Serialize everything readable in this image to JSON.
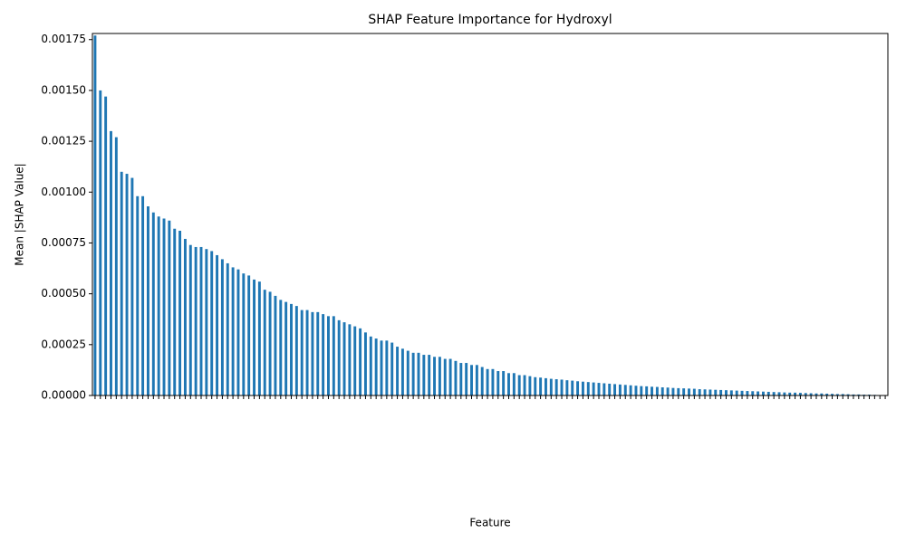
{
  "chart_data": {
    "type": "bar",
    "title": "SHAP Feature Importance for Hydroxyl",
    "xlabel": "Feature",
    "ylabel": "Mean |SHAP Value|",
    "color": "#1f77b4",
    "ylim": [
      0,
      0.00178
    ],
    "yticks": [
      {
        "value": 0,
        "label": "0.00000"
      },
      {
        "value": 0.00025,
        "label": "0.00025"
      },
      {
        "value": 0.0005,
        "label": "0.00050"
      },
      {
        "value": 0.00075,
        "label": "0.00075"
      },
      {
        "value": 0.001,
        "label": "0.00100"
      },
      {
        "value": 0.00125,
        "label": "0.00125"
      },
      {
        "value": 0.0015,
        "label": "0.00150"
      },
      {
        "value": 0.00175,
        "label": "0.00175"
      }
    ],
    "categories": [
      null,
      null,
      null,
      null,
      null,
      null,
      null,
      null,
      null,
      null,
      null,
      null,
      null,
      null,
      null,
      null,
      null,
      null,
      null,
      null,
      null,
      null,
      null,
      null,
      null,
      null,
      null,
      null,
      null,
      null,
      null,
      null,
      null,
      null,
      null,
      null,
      null,
      null,
      null,
      null,
      null,
      null,
      null,
      null,
      null,
      null,
      null,
      null,
      null,
      null,
      null,
      null,
      null,
      null,
      null,
      null,
      null,
      null,
      null,
      null,
      null,
      null,
      null,
      null,
      null,
      null,
      null,
      null,
      null,
      null,
      null,
      null,
      null,
      null,
      null,
      null,
      null,
      null,
      null,
      null,
      null,
      null,
      null,
      null,
      null,
      null,
      null,
      null,
      null,
      null,
      null,
      null,
      null,
      null,
      null,
      null,
      null,
      null,
      null,
      null,
      null,
      null,
      null,
      null,
      null,
      null,
      null,
      null,
      null,
      null,
      null,
      null,
      null,
      null,
      null,
      null,
      null,
      null,
      null,
      null,
      null,
      null,
      null,
      null,
      null,
      null,
      null,
      null,
      null,
      null,
      null,
      null,
      null,
      null,
      null,
      null,
      null,
      null,
      null,
      null,
      null,
      null,
      null,
      null,
      null,
      null,
      null,
      null,
      null,
      null
    ],
    "values": [
      0.00177,
      0.0015,
      0.00147,
      0.0013,
      0.00127,
      0.0011,
      0.00109,
      0.00107,
      0.00098,
      0.00098,
      0.00093,
      0.0009,
      0.00088,
      0.00087,
      0.00086,
      0.00082,
      0.00081,
      0.00077,
      0.00074,
      0.00073,
      0.00073,
      0.00072,
      0.00071,
      0.00069,
      0.00067,
      0.00065,
      0.00063,
      0.00062,
      0.0006,
      0.00059,
      0.00057,
      0.00056,
      0.00052,
      0.00051,
      0.00049,
      0.00047,
      0.00046,
      0.00045,
      0.00044,
      0.00042,
      0.00042,
      0.00041,
      0.00041,
      0.0004,
      0.00039,
      0.00039,
      0.00037,
      0.00036,
      0.00035,
      0.00034,
      0.00033,
      0.00031,
      0.00029,
      0.00028,
      0.00027,
      0.00027,
      0.00026,
      0.00024,
      0.00023,
      0.00022,
      0.00021,
      0.00021,
      0.0002,
      0.0002,
      0.00019,
      0.00019,
      0.00018,
      0.00018,
      0.00017,
      0.00016,
      0.00016,
      0.00015,
      0.00015,
      0.00014,
      0.00013,
      0.00013,
      0.00012,
      0.00012,
      0.00011,
      0.00011,
      0.0001,
      0.0001,
      9.5e-05,
      9e-05,
      8.8e-05,
      8.5e-05,
      8.2e-05,
      8e-05,
      7.8e-05,
      7.5e-05,
      7.3e-05,
      7e-05,
      6.8e-05,
      6.6e-05,
      6.4e-05,
      6.2e-05,
      6e-05,
      5.8e-05,
      5.6e-05,
      5.4e-05,
      5.2e-05,
      5e-05,
      4.8e-05,
      4.6e-05,
      4.5e-05,
      4.3e-05,
      4.2e-05,
      4e-05,
      3.9e-05,
      3.7e-05,
      3.6e-05,
      3.5e-05,
      3.4e-05,
      3.3e-05,
      3.1e-05,
      3e-05,
      2.9e-05,
      2.8e-05,
      2.7e-05,
      2.6e-05,
      2.5e-05,
      2.4e-05,
      2.3e-05,
      2.2e-05,
      2.1e-05,
      2e-05,
      1.9e-05,
      1.8e-05,
      1.7e-05,
      1.6e-05,
      1.5e-05,
      1.4e-05,
      1.4e-05,
      1.3e-05,
      1.2e-05,
      1.1e-05,
      1e-05,
      1e-05,
      9e-06,
      8e-06,
      7e-06,
      7e-06,
      6e-06,
      5e-06,
      5e-06,
      4e-06,
      4e-06,
      3e-06,
      2e-06,
      2e-06
    ]
  }
}
